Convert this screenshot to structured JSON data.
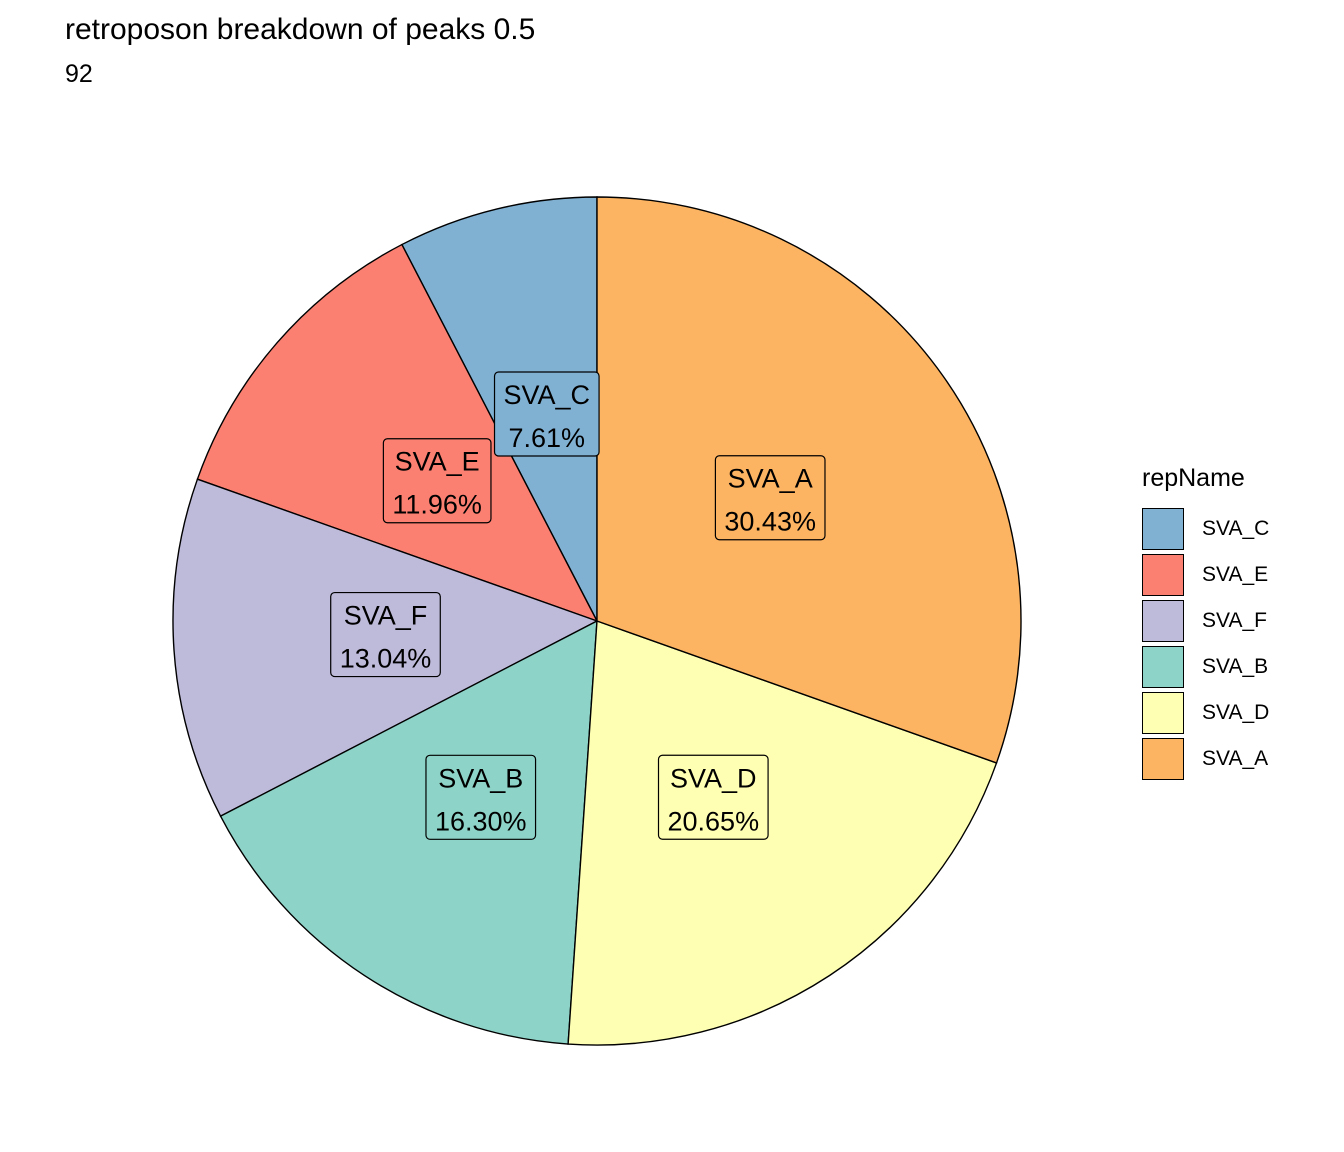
{
  "chart_data": {
    "type": "pie",
    "title": "retroposon breakdown of peaks 0.5",
    "subtitle": "92",
    "legend_title": "repName",
    "legend_position": "right",
    "slices": [
      {
        "name": "SVA_C",
        "value": 7.61,
        "label": "7.61%",
        "color": "#80B1D3"
      },
      {
        "name": "SVA_E",
        "value": 11.96,
        "label": "11.96%",
        "color": "#FB8072"
      },
      {
        "name": "SVA_F",
        "value": 13.04,
        "label": "13.04%",
        "color": "#BEBADA"
      },
      {
        "name": "SVA_B",
        "value": 16.3,
        "label": "16.30%",
        "color": "#8DD3C7"
      },
      {
        "name": "SVA_D",
        "value": 20.65,
        "label": "20.65%",
        "color": "#FFFFB3"
      },
      {
        "name": "SVA_A",
        "value": 30.43,
        "label": "30.43%",
        "color": "#FDB462"
      }
    ]
  }
}
